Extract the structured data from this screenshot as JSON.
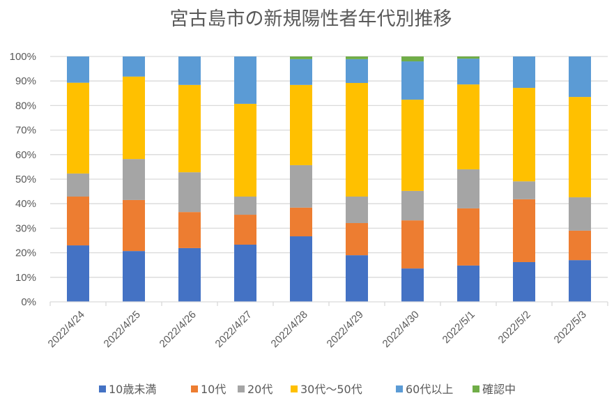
{
  "chart_data": {
    "type": "bar",
    "stacked": "percent",
    "title": "宮古島市の新規陽性者年代別推移",
    "xlabel": "",
    "ylabel": "",
    "ylim": [
      0,
      100
    ],
    "yticks": [
      "0%",
      "10%",
      "20%",
      "30%",
      "40%",
      "50%",
      "60%",
      "70%",
      "80%",
      "90%",
      "100%"
    ],
    "grid": true,
    "legend_position": "bottom",
    "categories": [
      "2022/4/24",
      "2022/4/25",
      "2022/4/26",
      "2022/4/27",
      "2022/4/28",
      "2022/4/29",
      "2022/4/30",
      "2022/5/1",
      "2022/5/2",
      "2022/5/3"
    ],
    "series": [
      {
        "name": "10歳未満",
        "color": "#4472C4",
        "values": [
          23.0,
          20.7,
          21.9,
          23.3,
          26.7,
          19.0,
          13.6,
          14.8,
          16.2,
          17.0
        ]
      },
      {
        "name": "10代",
        "color": "#ED7D31",
        "values": [
          19.9,
          20.8,
          14.7,
          12.2,
          11.7,
          13.1,
          19.6,
          23.3,
          25.6,
          12.0
        ]
      },
      {
        "name": "20代",
        "color": "#A5A5A5",
        "values": [
          9.4,
          16.7,
          16.2,
          7.4,
          17.3,
          10.8,
          12.0,
          15.9,
          7.3,
          13.6
        ]
      },
      {
        "name": "30代～50代",
        "color": "#FFC000",
        "values": [
          37.0,
          33.6,
          35.6,
          37.8,
          32.7,
          46.3,
          37.2,
          34.6,
          38.1,
          40.9
        ]
      },
      {
        "name": "60代以上",
        "color": "#5B9BD5",
        "values": [
          10.7,
          8.2,
          11.6,
          19.3,
          10.5,
          9.7,
          15.6,
          10.5,
          12.8,
          16.5
        ]
      },
      {
        "name": "確認中",
        "color": "#70AD47",
        "values": [
          0,
          0,
          0,
          0,
          1.1,
          1.1,
          2.0,
          0.9,
          0,
          0
        ]
      }
    ]
  }
}
